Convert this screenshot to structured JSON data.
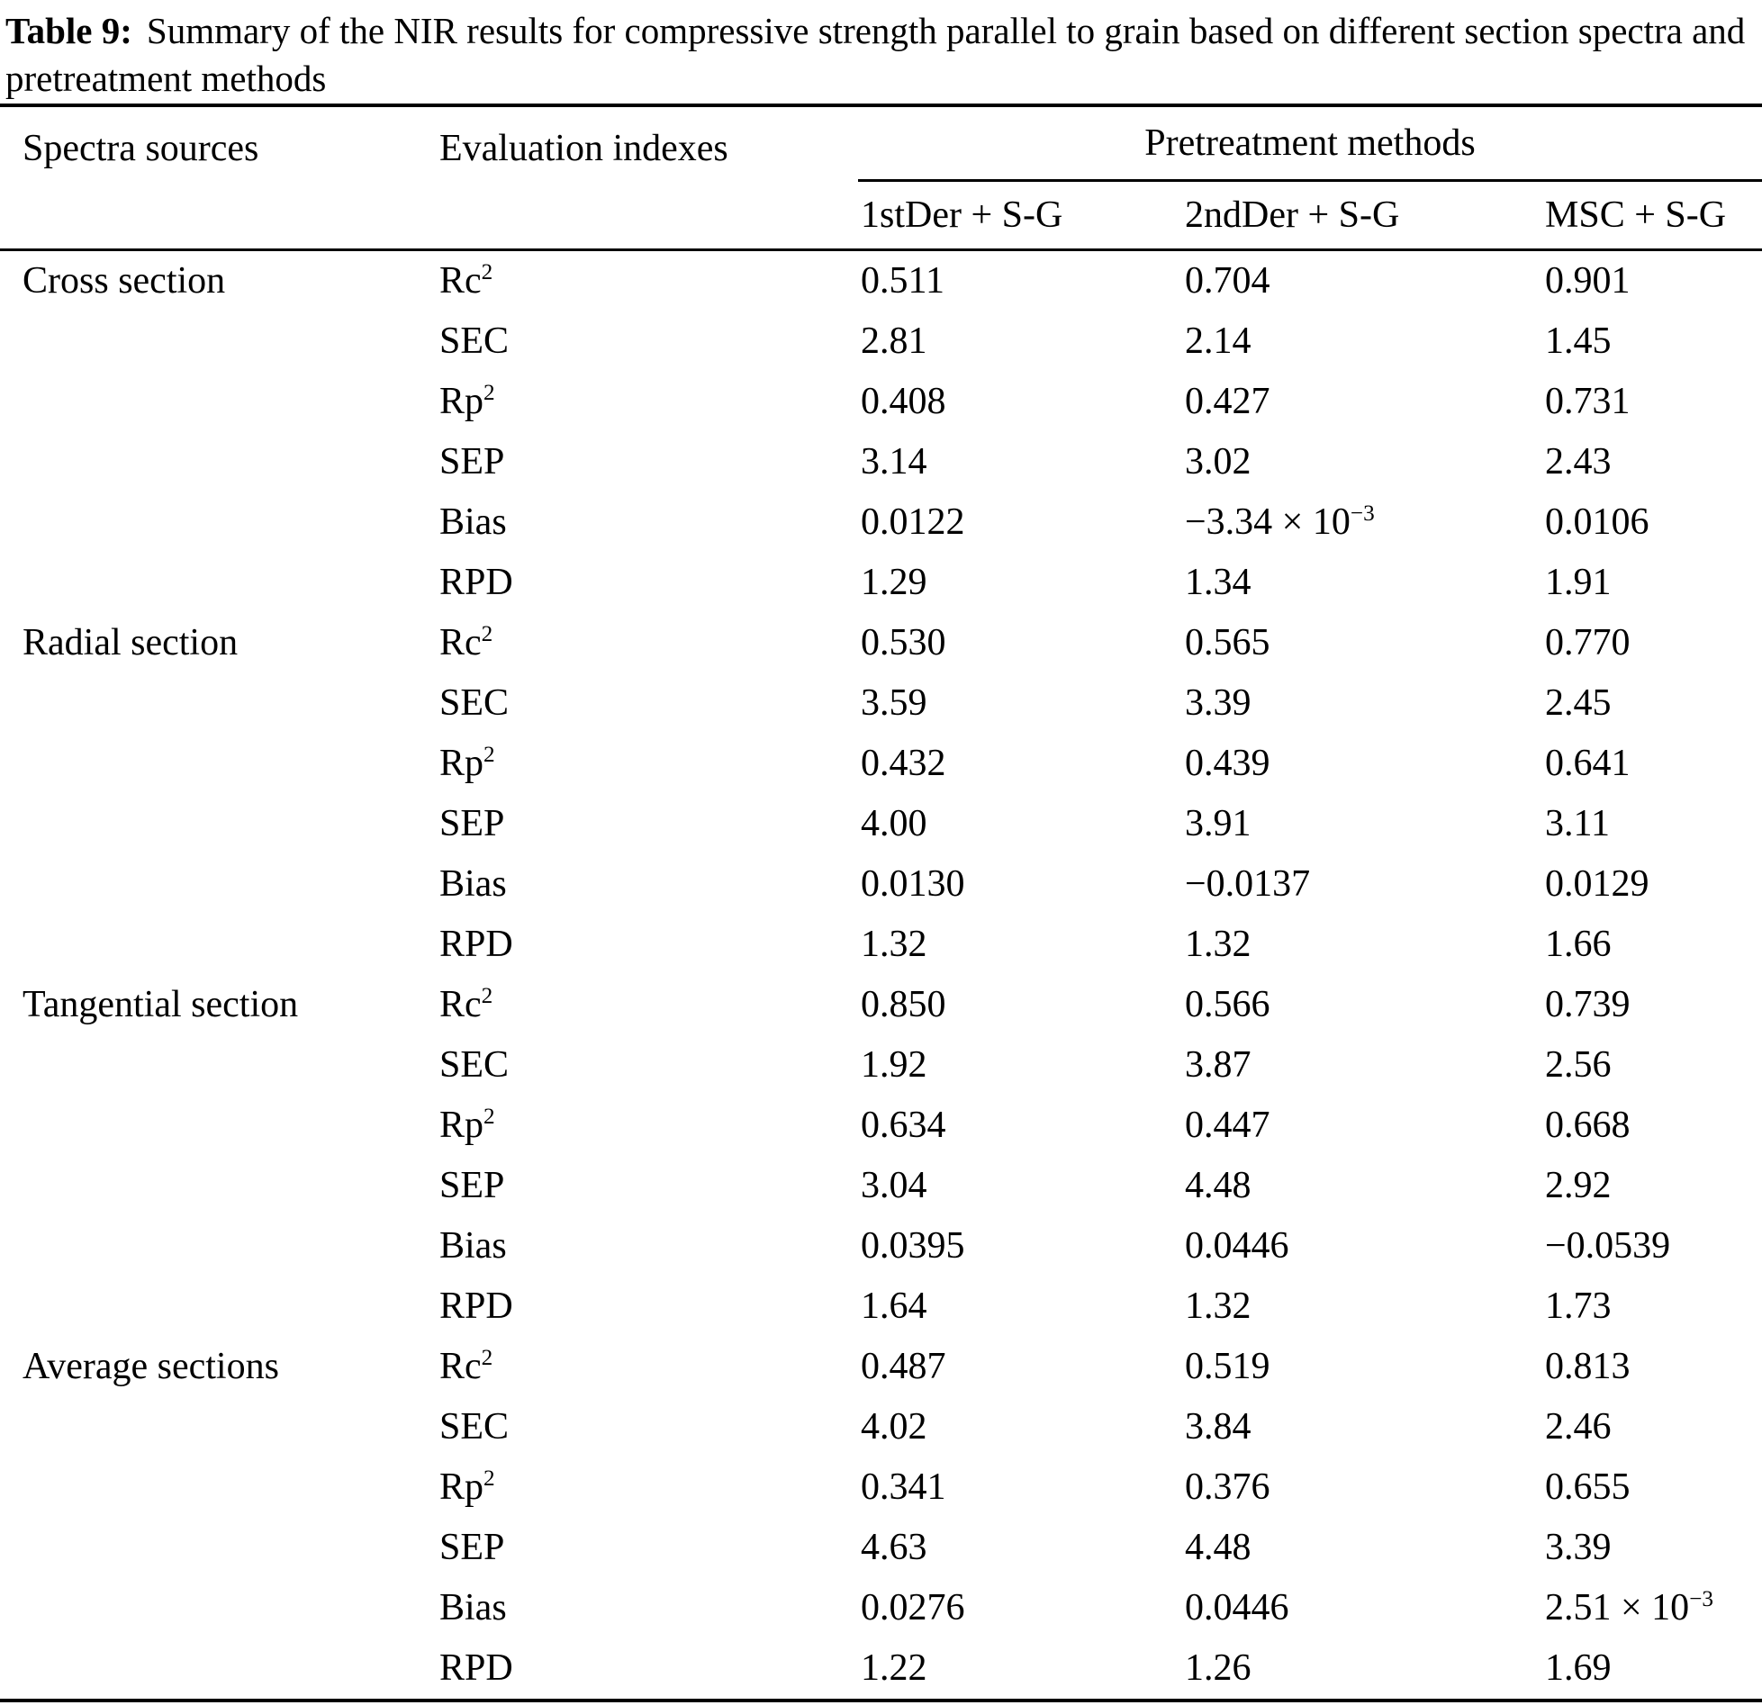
{
  "caption": {
    "label": "Table 9:",
    "text": "Summary of the NIR results for compressive strength parallel to grain based on different section spectra and pretreatment methods"
  },
  "headers": {
    "spectra": "Spectra sources",
    "indexes": "Evaluation indexes",
    "pretreatment": "Pretreatment methods",
    "methods": [
      "1stDer + S-G",
      "2ndDer + S-G",
      "MSC + S-G"
    ]
  },
  "groups": [
    {
      "section": "Cross section",
      "rows": [
        {
          "index": {
            "base": "Rc",
            "sup": "2"
          },
          "values": [
            {
              "base": "0.511",
              "sup": ""
            },
            {
              "base": "0.704",
              "sup": ""
            },
            {
              "base": "0.901",
              "sup": ""
            }
          ]
        },
        {
          "index": {
            "base": "SEC",
            "sup": ""
          },
          "values": [
            {
              "base": "2.81",
              "sup": ""
            },
            {
              "base": "2.14",
              "sup": ""
            },
            {
              "base": "1.45",
              "sup": ""
            }
          ]
        },
        {
          "index": {
            "base": "Rp",
            "sup": "2"
          },
          "values": [
            {
              "base": "0.408",
              "sup": ""
            },
            {
              "base": "0.427",
              "sup": ""
            },
            {
              "base": "0.731",
              "sup": ""
            }
          ]
        },
        {
          "index": {
            "base": "SEP",
            "sup": ""
          },
          "values": [
            {
              "base": "3.14",
              "sup": ""
            },
            {
              "base": "3.02",
              "sup": ""
            },
            {
              "base": "2.43",
              "sup": ""
            }
          ]
        },
        {
          "index": {
            "base": "Bias",
            "sup": ""
          },
          "values": [
            {
              "base": "0.0122",
              "sup": ""
            },
            {
              "base": "−3.34 × 10",
              "sup": "−3"
            },
            {
              "base": "0.0106",
              "sup": ""
            }
          ]
        },
        {
          "index": {
            "base": "RPD",
            "sup": ""
          },
          "values": [
            {
              "base": "1.29",
              "sup": ""
            },
            {
              "base": "1.34",
              "sup": ""
            },
            {
              "base": "1.91",
              "sup": ""
            }
          ]
        }
      ]
    },
    {
      "section": "Radial section",
      "rows": [
        {
          "index": {
            "base": "Rc",
            "sup": "2"
          },
          "values": [
            {
              "base": "0.530",
              "sup": ""
            },
            {
              "base": "0.565",
              "sup": ""
            },
            {
              "base": "0.770",
              "sup": ""
            }
          ]
        },
        {
          "index": {
            "base": "SEC",
            "sup": ""
          },
          "values": [
            {
              "base": "3.59",
              "sup": ""
            },
            {
              "base": "3.39",
              "sup": ""
            },
            {
              "base": "2.45",
              "sup": ""
            }
          ]
        },
        {
          "index": {
            "base": "Rp",
            "sup": "2"
          },
          "values": [
            {
              "base": "0.432",
              "sup": ""
            },
            {
              "base": "0.439",
              "sup": ""
            },
            {
              "base": "0.641",
              "sup": ""
            }
          ]
        },
        {
          "index": {
            "base": "SEP",
            "sup": ""
          },
          "values": [
            {
              "base": "4.00",
              "sup": ""
            },
            {
              "base": "3.91",
              "sup": ""
            },
            {
              "base": "3.11",
              "sup": ""
            }
          ]
        },
        {
          "index": {
            "base": "Bias",
            "sup": ""
          },
          "values": [
            {
              "base": "0.0130",
              "sup": ""
            },
            {
              "base": "−0.0137",
              "sup": ""
            },
            {
              "base": "0.0129",
              "sup": ""
            }
          ]
        },
        {
          "index": {
            "base": "RPD",
            "sup": ""
          },
          "values": [
            {
              "base": "1.32",
              "sup": ""
            },
            {
              "base": "1.32",
              "sup": ""
            },
            {
              "base": "1.66",
              "sup": ""
            }
          ]
        }
      ]
    },
    {
      "section": "Tangential section",
      "rows": [
        {
          "index": {
            "base": "Rc",
            "sup": "2"
          },
          "values": [
            {
              "base": "0.850",
              "sup": ""
            },
            {
              "base": "0.566",
              "sup": ""
            },
            {
              "base": "0.739",
              "sup": ""
            }
          ]
        },
        {
          "index": {
            "base": "SEC",
            "sup": ""
          },
          "values": [
            {
              "base": "1.92",
              "sup": ""
            },
            {
              "base": "3.87",
              "sup": ""
            },
            {
              "base": "2.56",
              "sup": ""
            }
          ]
        },
        {
          "index": {
            "base": "Rp",
            "sup": "2"
          },
          "values": [
            {
              "base": "0.634",
              "sup": ""
            },
            {
              "base": "0.447",
              "sup": ""
            },
            {
              "base": "0.668",
              "sup": ""
            }
          ]
        },
        {
          "index": {
            "base": "SEP",
            "sup": ""
          },
          "values": [
            {
              "base": "3.04",
              "sup": ""
            },
            {
              "base": "4.48",
              "sup": ""
            },
            {
              "base": "2.92",
              "sup": ""
            }
          ]
        },
        {
          "index": {
            "base": "Bias",
            "sup": ""
          },
          "values": [
            {
              "base": "0.0395",
              "sup": ""
            },
            {
              "base": "0.0446",
              "sup": ""
            },
            {
              "base": "−0.0539",
              "sup": ""
            }
          ]
        },
        {
          "index": {
            "base": "RPD",
            "sup": ""
          },
          "values": [
            {
              "base": "1.64",
              "sup": ""
            },
            {
              "base": "1.32",
              "sup": ""
            },
            {
              "base": "1.73",
              "sup": ""
            }
          ]
        }
      ]
    },
    {
      "section": "Average sections",
      "rows": [
        {
          "index": {
            "base": "Rc",
            "sup": "2"
          },
          "values": [
            {
              "base": "0.487",
              "sup": ""
            },
            {
              "base": "0.519",
              "sup": ""
            },
            {
              "base": "0.813",
              "sup": ""
            }
          ]
        },
        {
          "index": {
            "base": "SEC",
            "sup": ""
          },
          "values": [
            {
              "base": "4.02",
              "sup": ""
            },
            {
              "base": "3.84",
              "sup": ""
            },
            {
              "base": "2.46",
              "sup": ""
            }
          ]
        },
        {
          "index": {
            "base": "Rp",
            "sup": "2"
          },
          "values": [
            {
              "base": "0.341",
              "sup": ""
            },
            {
              "base": "0.376",
              "sup": ""
            },
            {
              "base": "0.655",
              "sup": ""
            }
          ]
        },
        {
          "index": {
            "base": "SEP",
            "sup": ""
          },
          "values": [
            {
              "base": "4.63",
              "sup": ""
            },
            {
              "base": "4.48",
              "sup": ""
            },
            {
              "base": "3.39",
              "sup": ""
            }
          ]
        },
        {
          "index": {
            "base": "Bias",
            "sup": ""
          },
          "values": [
            {
              "base": "0.0276",
              "sup": ""
            },
            {
              "base": "0.0446",
              "sup": ""
            },
            {
              "base": "2.51 × 10",
              "sup": "−3"
            }
          ]
        },
        {
          "index": {
            "base": "RPD",
            "sup": ""
          },
          "values": [
            {
              "base": "1.22",
              "sup": ""
            },
            {
              "base": "1.26",
              "sup": ""
            },
            {
              "base": "1.69",
              "sup": ""
            }
          ]
        }
      ]
    }
  ],
  "colors": {
    "text": "#000000",
    "background": "#ffffff",
    "rule": "#000000"
  }
}
